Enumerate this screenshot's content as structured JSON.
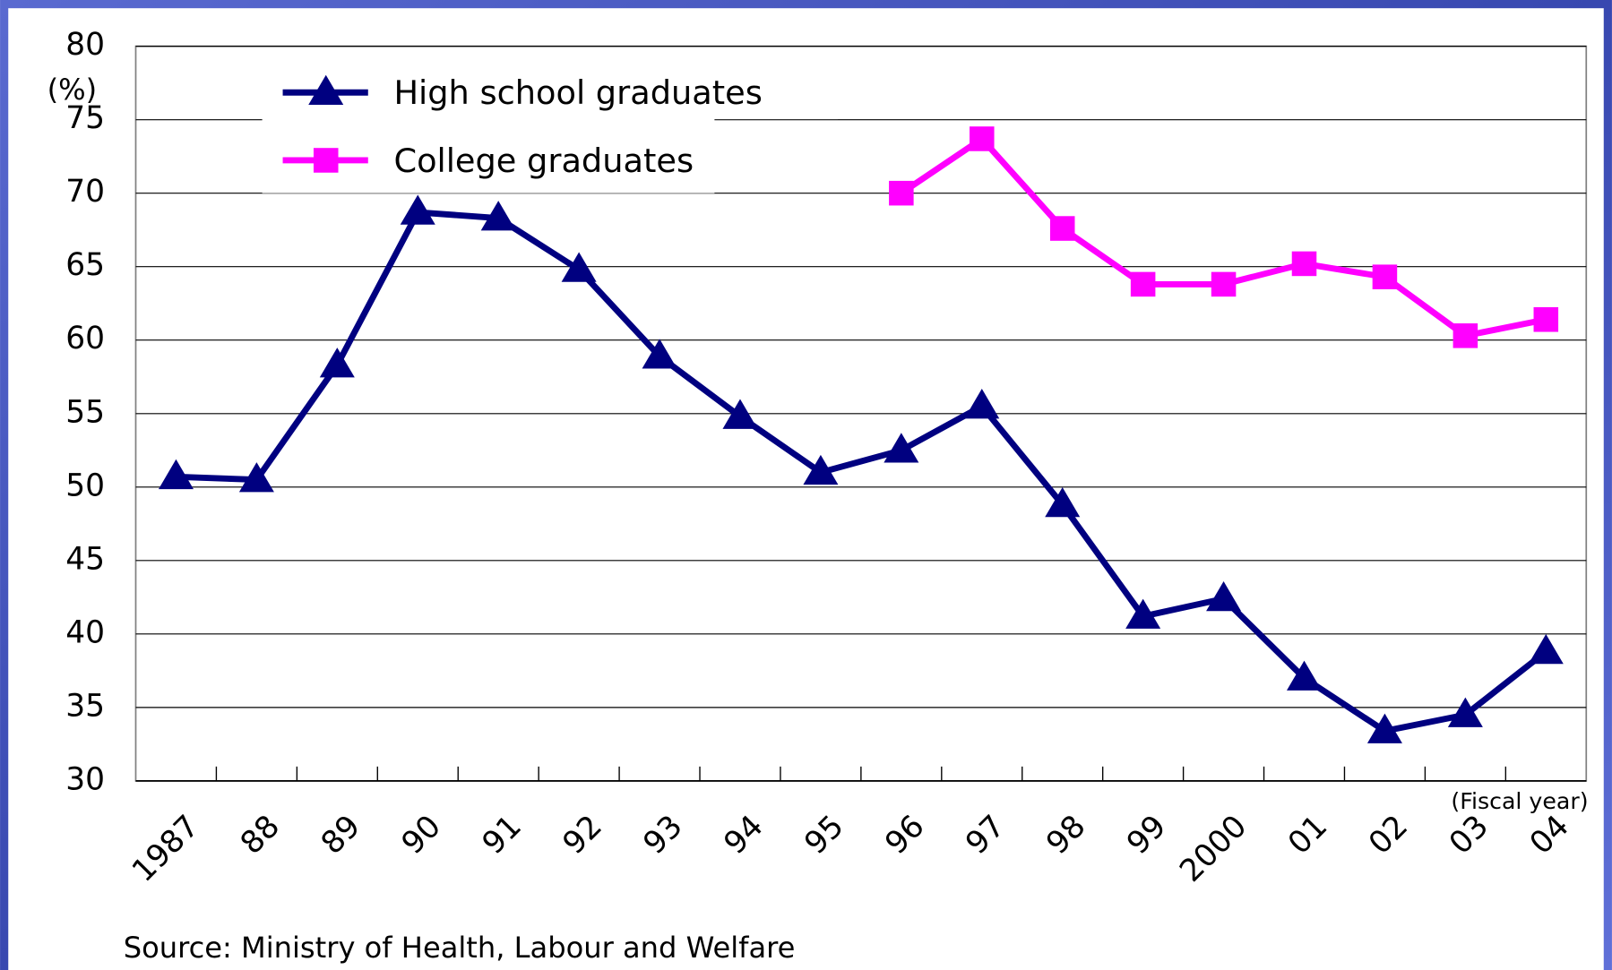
{
  "chart_data": {
    "type": "line",
    "y_label": "(%)",
    "x_label": "(Fiscal year)",
    "source": "Source: Ministry of Health, Labour and Welfare",
    "categories": [
      "1987",
      "88",
      "89",
      "90",
      "91",
      "92",
      "93",
      "94",
      "95",
      "96",
      "97",
      "98",
      "99",
      "2000",
      "01",
      "02",
      "03",
      "04"
    ],
    "series": [
      {
        "name": "High school graduates",
        "color": "#000080",
        "marker": "triangle",
        "values": [
          50.7,
          50.5,
          58.3,
          68.7,
          68.3,
          64.8,
          58.9,
          54.8,
          51.0,
          52.5,
          55.5,
          48.8,
          41.2,
          42.4,
          37.0,
          33.4,
          34.5,
          38.8
        ]
      },
      {
        "name": "College graduates",
        "color": "#ff00ff",
        "marker": "square",
        "values": [
          null,
          null,
          null,
          null,
          null,
          null,
          null,
          null,
          null,
          70.0,
          73.7,
          67.6,
          63.8,
          63.8,
          65.2,
          64.3,
          60.3,
          61.4
        ]
      }
    ],
    "ylim": [
      30,
      80
    ],
    "yticks": [
      30,
      35,
      40,
      45,
      50,
      55,
      60,
      65,
      70,
      75,
      80
    ],
    "grid": true,
    "legend": "upper left"
  }
}
